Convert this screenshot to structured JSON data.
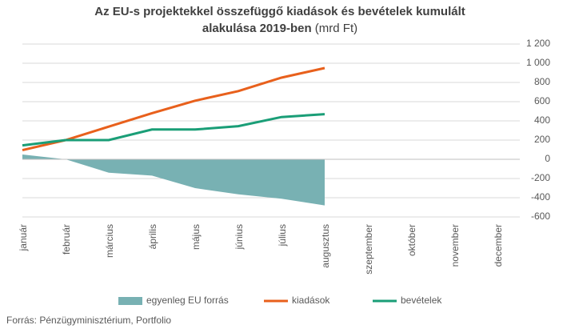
{
  "chart_data": {
    "type": "line",
    "title": "Az EU-s projektekkel összefüggő kiadások és bevételek kumulált alakulása 2019-ben",
    "subtitle": "(mrd Ft)",
    "categories": [
      "január",
      "február",
      "március",
      "április",
      "május",
      "június",
      "július",
      "augusztus",
      "szeptember",
      "október",
      "november",
      "december"
    ],
    "series": [
      {
        "name": "egyenleg EU forrás",
        "type": "area",
        "color": "#78b1b3",
        "values": [
          50,
          0,
          -140,
          -170,
          -300,
          -365,
          -410,
          -480,
          null,
          null,
          null,
          null
        ]
      },
      {
        "name": "kiadások",
        "type": "line",
        "color": "#e8601c",
        "values": [
          95,
          200,
          340,
          480,
          610,
          710,
          850,
          950,
          null,
          null,
          null,
          null
        ]
      },
      {
        "name": "bevételek",
        "type": "line",
        "color": "#1a9e77",
        "values": [
          145,
          200,
          200,
          310,
          310,
          345,
          440,
          470,
          null,
          null,
          null,
          null
        ]
      }
    ],
    "ylim": [
      -600,
      1200
    ],
    "yticks": [
      -600,
      -400,
      -200,
      0,
      200,
      400,
      600,
      800,
      {
        "value": 1000,
        "label": "1 000"
      },
      {
        "value": 1200,
        "label": "1 200"
      }
    ],
    "grid": true,
    "y_axis_side": "right",
    "legend": "bottom",
    "source": "Forrás:  Pénzügyminisztérium,  Portfolio"
  }
}
